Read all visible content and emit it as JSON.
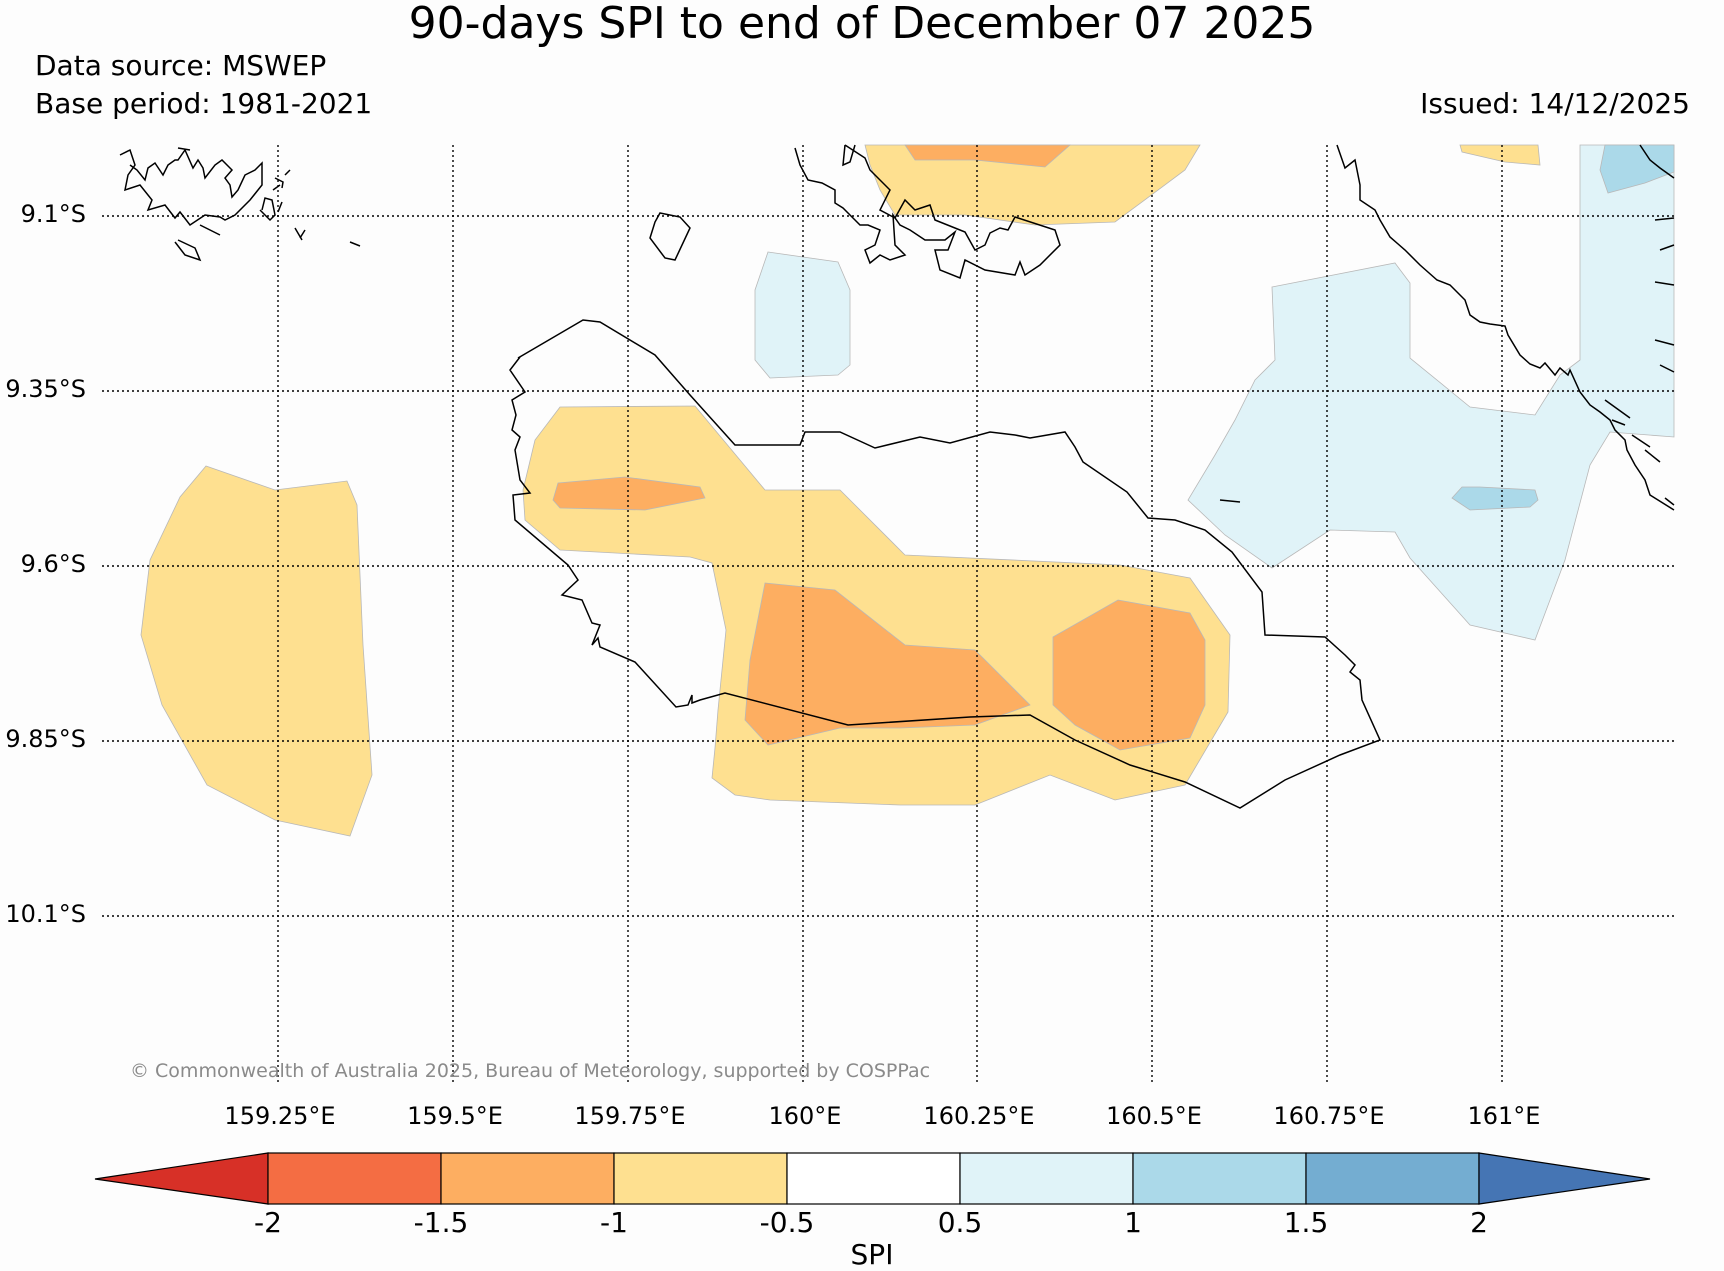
{
  "title": "90-days SPI to end of December 07 2025",
  "data_source": "Data source: MSWEP",
  "base_period": "Base period: 1981-2021",
  "issued": "Issued: 14/12/2025",
  "copyright": "© Commonwealth of Australia 2025, Bureau of Meteorology, supported by COSPPac",
  "lat_labels": [
    "9.1°S",
    "9.35°S",
    "9.6°S",
    "9.85°S",
    "10.1°S"
  ],
  "lon_labels": [
    "159.25°E",
    "159.5°E",
    "159.75°E",
    "160°E",
    "160.25°E",
    "160.5°E",
    "160.75°E",
    "161°E"
  ],
  "colorbar": {
    "label": "SPI",
    "ticks": [
      "-2",
      "-1.5",
      "-1",
      "-0.5",
      "0.5",
      "1",
      "1.5",
      "2"
    ],
    "colors": {
      "extend_low": "#d73027",
      "b1": "#f46d43",
      "b2": "#fdae61",
      "b3": "#fee090",
      "b4": "#ffffff",
      "b5": "#e0f3f8",
      "b6": "#abd9e9",
      "b7": "#74add1",
      "extend_high": "#4575b4"
    }
  }
}
